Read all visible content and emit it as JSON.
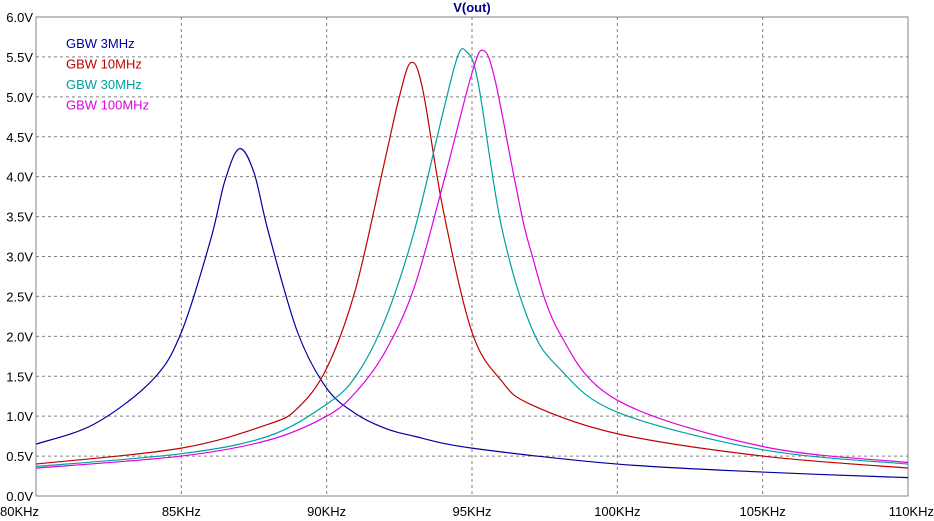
{
  "chart_data": {
    "type": "line",
    "title": "V(out)",
    "xlabel": "",
    "ylabel": "",
    "x_unit": "KHz",
    "xlim": [
      80,
      110
    ],
    "ylim": [
      0,
      6
    ],
    "x_ticks": [
      "80KHz",
      "85KHz",
      "90KHz",
      "95KHz",
      "100KHz",
      "105KHz",
      "110KHz"
    ],
    "y_ticks": [
      "0.0V",
      "0.5V",
      "1.0V",
      "1.5V",
      "2.0V",
      "2.5V",
      "3.0V",
      "3.5V",
      "4.0V",
      "4.5V",
      "5.0V",
      "5.5V",
      "6.0V"
    ],
    "grid": true,
    "legend_position": "top-left",
    "series": [
      {
        "name": "GBW 3MHz",
        "color": "#0000a0",
        "x": [
          80,
          82,
          84,
          85,
          86,
          86.5,
          87,
          87.5,
          88,
          89,
          90,
          91,
          92,
          93,
          95,
          100,
          105,
          110
        ],
        "y": [
          0.65,
          0.9,
          1.45,
          2.05,
          3.2,
          3.95,
          4.35,
          4.05,
          3.3,
          2.05,
          1.35,
          1.03,
          0.85,
          0.75,
          0.6,
          0.4,
          0.3,
          0.23
        ]
      },
      {
        "name": "GBW 10MHz",
        "color": "#c00000",
        "x": [
          80,
          85,
          88,
          89,
          90,
          91,
          92,
          92.5,
          92.9,
          93.3,
          94,
          95,
          96,
          97,
          100,
          105,
          110
        ],
        "y": [
          0.4,
          0.6,
          0.9,
          1.1,
          1.6,
          2.6,
          4.2,
          5.0,
          5.43,
          5.1,
          3.6,
          2.05,
          1.45,
          1.15,
          0.78,
          0.5,
          0.35
        ]
      },
      {
        "name": "GBW 30MHz",
        "color": "#00a0a0",
        "x": [
          80,
          85,
          88,
          90,
          91,
          92,
          93,
          94,
          94.5,
          94.8,
          95.2,
          96,
          97,
          98,
          100,
          105,
          110
        ],
        "y": [
          0.37,
          0.53,
          0.75,
          1.15,
          1.5,
          2.2,
          3.3,
          4.8,
          5.5,
          5.57,
          5.2,
          3.4,
          2.15,
          1.6,
          1.05,
          0.58,
          0.4
        ]
      },
      {
        "name": "GBW 100MHz",
        "color": "#e000e0",
        "x": [
          80,
          85,
          88,
          90,
          91,
          92,
          93,
          94,
          95,
          95.4,
          95.8,
          96.5,
          97,
          98,
          100,
          105,
          110
        ],
        "y": [
          0.35,
          0.5,
          0.7,
          1.0,
          1.3,
          1.8,
          2.6,
          3.9,
          5.3,
          5.58,
          5.2,
          3.9,
          3.1,
          2.05,
          1.2,
          0.62,
          0.42
        ]
      }
    ]
  }
}
